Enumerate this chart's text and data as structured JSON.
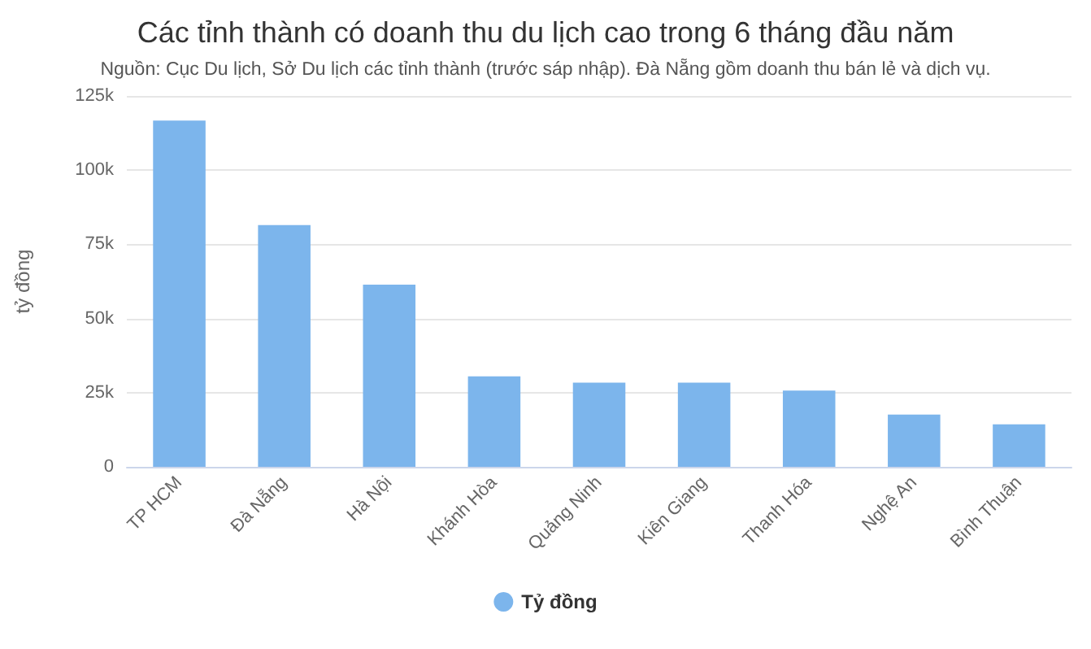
{
  "chart_data": {
    "type": "bar",
    "title": "Các tỉnh thành có doanh thu du lịch cao trong 6 tháng đầu năm",
    "subtitle": "Nguồn: Cục Du lịch, Sở Du lịch các tỉnh thành (trước sáp nhập). Đà Nẵng gồm doanh thu bán lẻ và dịch vụ.",
    "ylabel": "tỷ đồng",
    "categories": [
      "TP HCM",
      "Đà Nẵng",
      "Hà Nội",
      "Khánh Hòa",
      "Quảng Ninh",
      "Kiên Giang",
      "Thanh Hóa",
      "Nghệ An",
      "Bình Thuận"
    ],
    "series": [
      {
        "name": "Tỷ đồng",
        "color": "#7cb5ec",
        "values": [
          116.7,
          81.5,
          61.4,
          30.5,
          28.4,
          28.4,
          25.7,
          17.6,
          14.3
        ]
      }
    ],
    "ylim": [
      0,
      125
    ],
    "yticks": [
      {
        "value": 0,
        "label": "0"
      },
      {
        "value": 25,
        "label": "25k"
      },
      {
        "value": 50,
        "label": "50k"
      },
      {
        "value": 75,
        "label": "75k"
      },
      {
        "value": 100,
        "label": "100k"
      },
      {
        "value": 125,
        "label": "125k"
      }
    ],
    "grid": "y",
    "legend": "bottom"
  }
}
